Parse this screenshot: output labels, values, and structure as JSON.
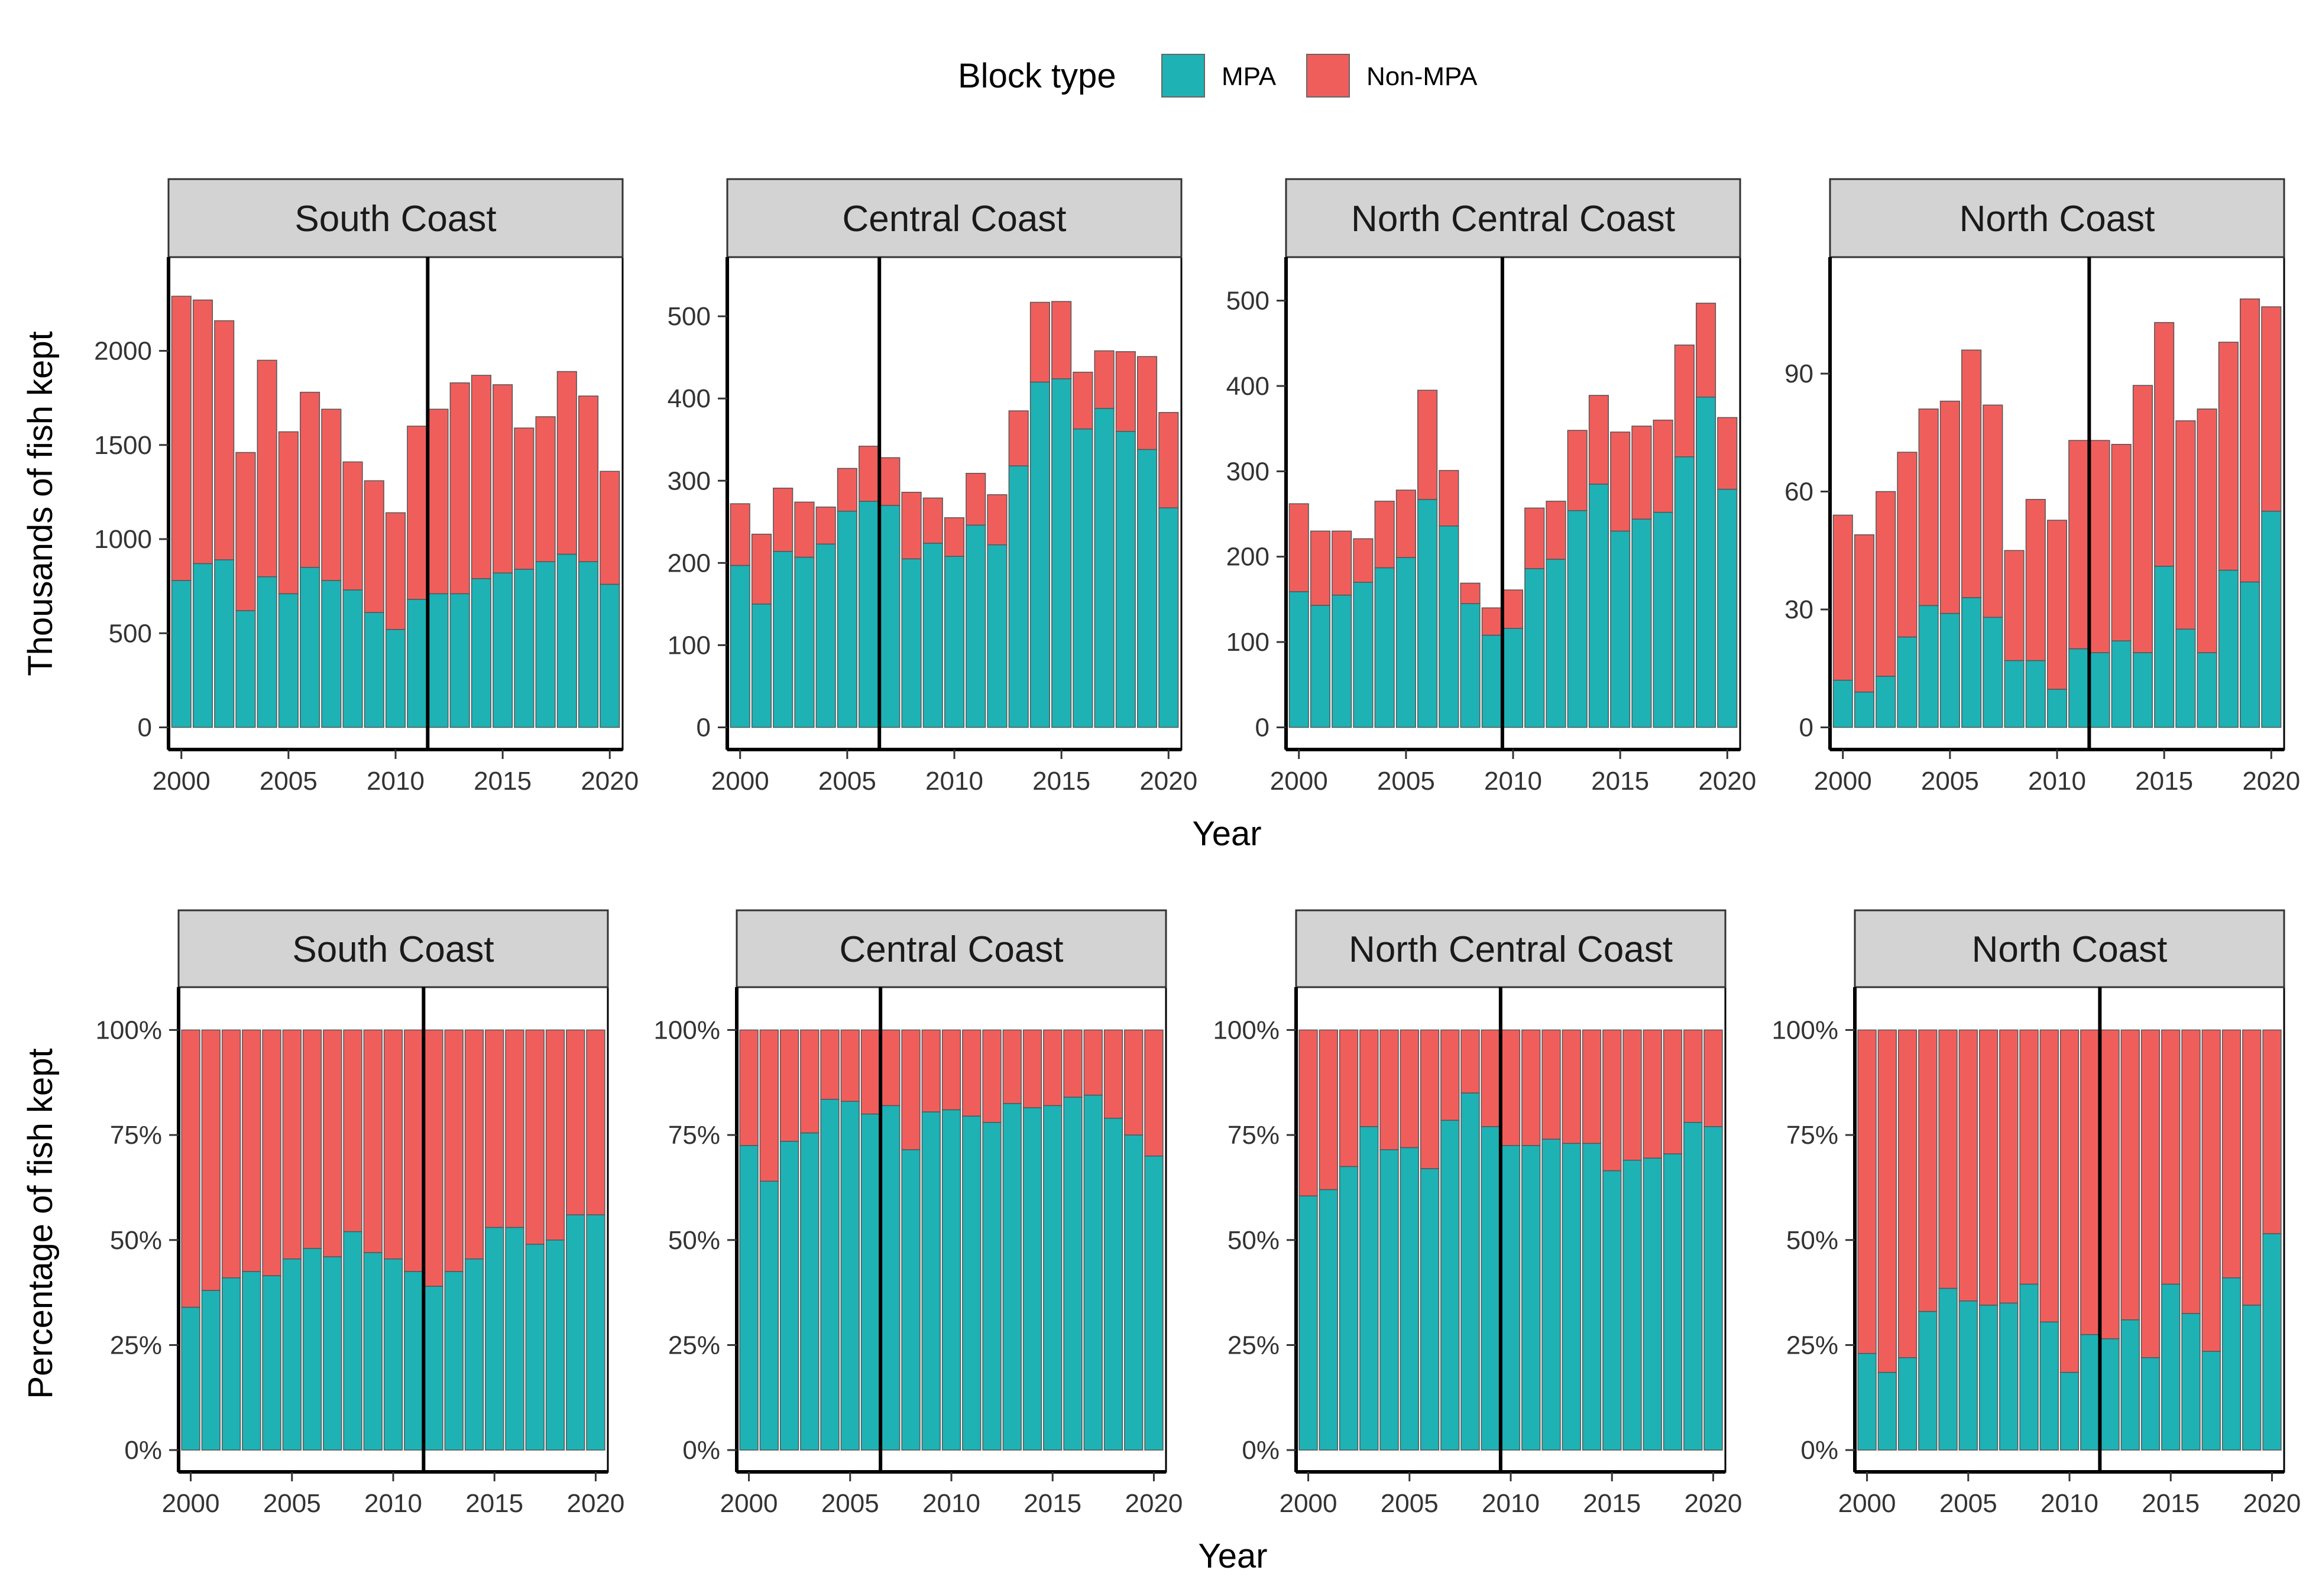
{
  "legend": {
    "title": "Block type",
    "items": [
      {
        "label": "MPA",
        "color": "#1EB2B5"
      },
      {
        "label": "Non-MPA",
        "color": "#F05E5C"
      }
    ]
  },
  "colors": {
    "mpa": "#1EB2B5",
    "nonmpa": "#F05E5C",
    "strip": "#D3D3D3"
  },
  "rows": [
    {
      "ylabel": "Thousands of fish kept",
      "xlabel": "Year"
    },
    {
      "ylabel": "Percentage of fish kept",
      "xlabel": "Year"
    }
  ],
  "chart_data": [
    {
      "type": "bar",
      "stacked": true,
      "panel": "South Coast",
      "row": "count",
      "ylabel": "Thousands of fish kept",
      "xlabel": "Year",
      "ylim": [
        0,
        2380
      ],
      "yticks": [
        0,
        500,
        1000,
        1500,
        2000
      ],
      "ytick_labels": [
        "0",
        "500",
        "1000",
        "1500",
        "2000"
      ],
      "xticks": [
        2000,
        2005,
        2010,
        2015,
        2020
      ],
      "vline": 2011.5,
      "years": [
        2000,
        2001,
        2002,
        2003,
        2004,
        2005,
        2006,
        2007,
        2008,
        2009,
        2010,
        2011,
        2012,
        2013,
        2014,
        2015,
        2016,
        2017,
        2018,
        2019,
        2020
      ],
      "series": [
        {
          "name": "MPA",
          "values": [
            780,
            870,
            890,
            620,
            800,
            710,
            850,
            780,
            730,
            610,
            520,
            680,
            710,
            710,
            790,
            820,
            840,
            880,
            920,
            880,
            760
          ]
        },
        {
          "name": "Non-MPA",
          "values": [
            1510,
            1400,
            1270,
            840,
            1150,
            860,
            930,
            910,
            680,
            700,
            620,
            920,
            980,
            1120,
            1080,
            1000,
            750,
            770,
            970,
            880,
            600
          ]
        }
      ]
    },
    {
      "type": "bar",
      "stacked": true,
      "panel": "Central Coast",
      "row": "count",
      "ylabel": "Thousands of fish kept",
      "xlabel": "Year",
      "ylim": [
        0,
        545
      ],
      "yticks": [
        0,
        100,
        200,
        300,
        400,
        500
      ],
      "ytick_labels": [
        "0",
        "100",
        "200",
        "300",
        "400",
        "500"
      ],
      "xticks": [
        2000,
        2005,
        2010,
        2015,
        2020
      ],
      "vline": 2006.5,
      "years": [
        2000,
        2001,
        2002,
        2003,
        2004,
        2005,
        2006,
        2007,
        2008,
        2009,
        2010,
        2011,
        2012,
        2013,
        2014,
        2015,
        2016,
        2017,
        2018,
        2019,
        2020
      ],
      "series": [
        {
          "name": "MPA",
          "values": [
            197,
            150,
            214,
            207,
            223,
            263,
            275,
            270,
            205,
            224,
            208,
            246,
            222,
            318,
            420,
            424,
            363,
            388,
            360,
            338,
            267
          ]
        },
        {
          "name": "Non-MPA",
          "values": [
            75,
            85,
            77,
            67,
            45,
            52,
            67,
            58,
            81,
            55,
            47,
            63,
            61,
            67,
            97,
            94,
            69,
            70,
            97,
            113,
            116
          ]
        }
      ]
    },
    {
      "type": "bar",
      "stacked": true,
      "panel": "North Central Coast",
      "row": "count",
      "ylabel": "Thousands of fish kept",
      "xlabel": "Year",
      "ylim": [
        0,
        525
      ],
      "yticks": [
        0,
        100,
        200,
        300,
        400,
        500
      ],
      "ytick_labels": [
        "0",
        "100",
        "200",
        "300",
        "400",
        "500"
      ],
      "xticks": [
        2000,
        2005,
        2010,
        2015,
        2020
      ],
      "vline": 2009.5,
      "years": [
        2000,
        2001,
        2002,
        2003,
        2004,
        2005,
        2006,
        2007,
        2008,
        2009,
        2010,
        2011,
        2012,
        2013,
        2014,
        2015,
        2016,
        2017,
        2018,
        2019,
        2020
      ],
      "series": [
        {
          "name": "MPA",
          "values": [
            159,
            143,
            155,
            170,
            187,
            199,
            267,
            236,
            145,
            108,
            116,
            186,
            197,
            254,
            285,
            230,
            244,
            252,
            317,
            387,
            279
          ]
        },
        {
          "name": "Non-MPA",
          "values": [
            103,
            87,
            75,
            51,
            78,
            79,
            128,
            65,
            24,
            32,
            45,
            71,
            68,
            94,
            104,
            116,
            109,
            108,
            131,
            110,
            84
          ]
        }
      ]
    },
    {
      "type": "bar",
      "stacked": true,
      "panel": "North Coast",
      "row": "count",
      "ylabel": "Thousands of fish kept",
      "xlabel": "Year",
      "ylim": [
        0,
        114
      ],
      "yticks": [
        0,
        30,
        60,
        90
      ],
      "ytick_labels": [
        "0",
        "30",
        "60",
        "90"
      ],
      "xticks": [
        2000,
        2005,
        2010,
        2015,
        2020
      ],
      "vline": 2011.5,
      "years": [
        2000,
        2001,
        2002,
        2003,
        2004,
        2005,
        2006,
        2007,
        2008,
        2009,
        2010,
        2011,
        2012,
        2013,
        2014,
        2015,
        2016,
        2017,
        2018,
        2019,
        2020
      ],
      "series": [
        {
          "name": "MPA",
          "values": [
            12,
            9,
            13,
            23,
            31,
            29,
            33,
            28,
            17,
            17,
            9.7,
            20,
            19,
            22,
            19,
            41,
            25,
            19,
            40,
            37,
            55
          ]
        },
        {
          "name": "Non-MPA",
          "values": [
            42,
            40,
            47,
            47,
            50,
            54,
            63,
            54,
            28,
            41,
            43,
            53,
            54,
            50,
            68,
            62,
            53,
            62,
            58,
            72,
            52
          ]
        }
      ]
    },
    {
      "type": "bar",
      "stacked": true,
      "percent": true,
      "panel": "South Coast",
      "row": "percent",
      "ylabel": "Percentage of fish kept",
      "xlabel": "Year",
      "ylim": [
        0,
        105
      ],
      "yticks": [
        0,
        25,
        50,
        75,
        100
      ],
      "ytick_labels": [
        "0%",
        "25%",
        "50%",
        "75%",
        "100%"
      ],
      "xticks": [
        2000,
        2005,
        2010,
        2015,
        2020
      ],
      "vline": 2011.5,
      "years": [
        2000,
        2001,
        2002,
        2003,
        2004,
        2005,
        2006,
        2007,
        2008,
        2009,
        2010,
        2011,
        2012,
        2013,
        2014,
        2015,
        2016,
        2017,
        2018,
        2019,
        2020
      ],
      "series": [
        {
          "name": "MPA",
          "values": [
            34,
            38,
            41,
            42.5,
            41.5,
            45.5,
            48,
            46,
            52,
            47,
            45.5,
            42.5,
            39,
            42.5,
            45.5,
            53,
            53,
            49,
            50,
            56,
            56
          ]
        },
        {
          "name": "Non-MPA",
          "values": [
            66,
            62,
            59,
            57.5,
            58.5,
            54.5,
            52,
            54,
            48,
            53,
            54.5,
            57.5,
            61,
            57.5,
            54.5,
            47,
            47,
            51,
            50,
            44,
            44
          ]
        }
      ]
    },
    {
      "type": "bar",
      "stacked": true,
      "percent": true,
      "panel": "Central Coast",
      "row": "percent",
      "ylabel": "Percentage of fish kept",
      "xlabel": "Year",
      "ylim": [
        0,
        105
      ],
      "yticks": [
        0,
        25,
        50,
        75,
        100
      ],
      "ytick_labels": [
        "0%",
        "25%",
        "50%",
        "75%",
        "100%"
      ],
      "xticks": [
        2000,
        2005,
        2010,
        2015,
        2020
      ],
      "vline": 2006.5,
      "years": [
        2000,
        2001,
        2002,
        2003,
        2004,
        2005,
        2006,
        2007,
        2008,
        2009,
        2010,
        2011,
        2012,
        2013,
        2014,
        2015,
        2016,
        2017,
        2018,
        2019,
        2020
      ],
      "series": [
        {
          "name": "MPA",
          "values": [
            72.5,
            64,
            73.5,
            75.5,
            83.5,
            83,
            80,
            82,
            71.5,
            80.5,
            81,
            79.5,
            78,
            82.5,
            81.5,
            82,
            84,
            84.5,
            79,
            75,
            70
          ]
        },
        {
          "name": "Non-MPA",
          "values": [
            27.5,
            36,
            26.5,
            24.5,
            16.5,
            17,
            20,
            18,
            28.5,
            19.5,
            19,
            20.5,
            22,
            17.5,
            18.5,
            18,
            16,
            15.5,
            21,
            25,
            30
          ]
        }
      ]
    },
    {
      "type": "bar",
      "stacked": true,
      "percent": true,
      "panel": "North Central Coast",
      "row": "percent",
      "ylabel": "Percentage of fish kept",
      "xlabel": "Year",
      "ylim": [
        0,
        105
      ],
      "yticks": [
        0,
        25,
        50,
        75,
        100
      ],
      "ytick_labels": [
        "0%",
        "25%",
        "50%",
        "75%",
        "100%"
      ],
      "xticks": [
        2000,
        2005,
        2010,
        2015,
        2020
      ],
      "vline": 2009.5,
      "years": [
        2000,
        2001,
        2002,
        2003,
        2004,
        2005,
        2006,
        2007,
        2008,
        2009,
        2010,
        2011,
        2012,
        2013,
        2014,
        2015,
        2016,
        2017,
        2018,
        2019,
        2020
      ],
      "series": [
        {
          "name": "MPA",
          "values": [
            60.5,
            62,
            67.5,
            77,
            71.5,
            72,
            67,
            78.5,
            85,
            77,
            72.5,
            72.5,
            74,
            73,
            73,
            66.5,
            69,
            69.5,
            70.5,
            78,
            77
          ]
        },
        {
          "name": "Non-MPA",
          "values": [
            39.5,
            38,
            32.5,
            23,
            28.5,
            28,
            33,
            21.5,
            15,
            23,
            27.5,
            27.5,
            26,
            27,
            27,
            33.5,
            31,
            30.5,
            29.5,
            22,
            23
          ]
        }
      ]
    },
    {
      "type": "bar",
      "stacked": true,
      "percent": true,
      "panel": "North Coast",
      "row": "percent",
      "ylabel": "Percentage of fish kept",
      "xlabel": "Year",
      "ylim": [
        0,
        105
      ],
      "yticks": [
        0,
        25,
        50,
        75,
        100
      ],
      "ytick_labels": [
        "0%",
        "25%",
        "50%",
        "75%",
        "100%"
      ],
      "xticks": [
        2000,
        2005,
        2010,
        2015,
        2020
      ],
      "vline": 2011.5,
      "years": [
        2000,
        2001,
        2002,
        2003,
        2004,
        2005,
        2006,
        2007,
        2008,
        2009,
        2010,
        2011,
        2012,
        2013,
        2014,
        2015,
        2016,
        2017,
        2018,
        2019,
        2020
      ],
      "series": [
        {
          "name": "MPA",
          "values": [
            23,
            18.5,
            22,
            33,
            38.5,
            35.5,
            34.5,
            35,
            39.5,
            30.5,
            18.5,
            27.5,
            26.5,
            31,
            22,
            39.5,
            32.5,
            23.5,
            41,
            34.5,
            51.5
          ]
        },
        {
          "name": "Non-MPA",
          "values": [
            77,
            81.5,
            78,
            67,
            61.5,
            64.5,
            65.5,
            65,
            60.5,
            69.5,
            81.5,
            72.5,
            73.5,
            69,
            78,
            60.5,
            67.5,
            76.5,
            59,
            65.5,
            48.5
          ]
        }
      ]
    }
  ]
}
